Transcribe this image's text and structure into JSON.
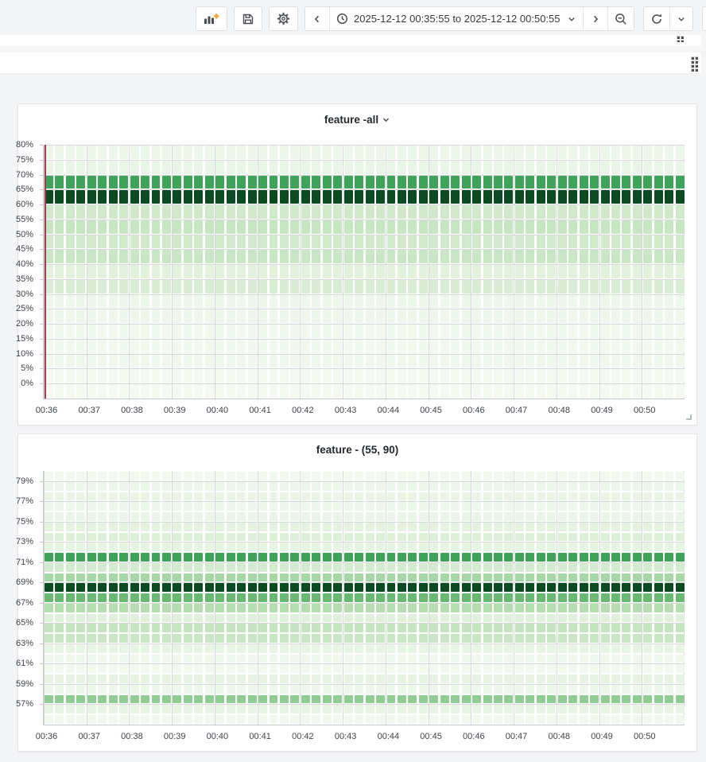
{
  "toolbar": {
    "time_range": "2025-12-12 00:35:55 to 2025-12-12 00:50:55",
    "buttons": [
      "add-panel",
      "save-dashboard",
      "dashboard-settings",
      "time-range-back",
      "time-range-picker",
      "time-range-forward",
      "zoom-out-time-range",
      "refresh-dashboard",
      "auto-refresh-interval",
      "cycle-view-mode"
    ]
  },
  "empty_rows": [
    {
      "name": "collapsed-row-1",
      "drag_handle": "partial"
    },
    {
      "name": "collapsed-row-2",
      "drag_handle": "full"
    }
  ],
  "panels": [
    {
      "title": "feature -all",
      "has_menu_caret": true
    },
    {
      "title": "feature - (55, 90)",
      "has_menu_caret": false
    }
  ],
  "chart_data": [
    {
      "type": "heatmap",
      "title": "feature -all",
      "x_range": [
        "00:35:55",
        "00:50:55"
      ],
      "x_ticks": [
        "00:36",
        "00:37",
        "00:38",
        "00:39",
        "00:40",
        "00:41",
        "00:42",
        "00:43",
        "00:44",
        "00:45",
        "00:46",
        "00:47",
        "00:48",
        "00:49",
        "00:50"
      ],
      "columns": 60,
      "column_interval_seconds": 15,
      "grid": true,
      "legend": false,
      "y_axis": {
        "unit": "percent",
        "min": -5,
        "max": 80,
        "tick_values": [
          80,
          75,
          70,
          65,
          60,
          55,
          50,
          45,
          40,
          35,
          30,
          25,
          20,
          15,
          10,
          5,
          0
        ],
        "tick_labels": [
          "80%",
          "75%",
          "70%",
          "65%",
          "60%",
          "55%",
          "50%",
          "45%",
          "40%",
          "35%",
          "30%",
          "25%",
          "20%",
          "15%",
          "10%",
          "5%",
          "0%"
        ]
      },
      "rows": [
        {
          "from": 75,
          "to": 80,
          "color": "#ecf6e9",
          "density": 0.04
        },
        {
          "from": 70,
          "to": 75,
          "color": "#e9f5e6",
          "density": 0.05
        },
        {
          "from": 65,
          "to": 70,
          "color": "#3fa35a",
          "density": 0.75
        },
        {
          "from": 60,
          "to": 65,
          "color": "#0c4a22",
          "density": 1.0
        },
        {
          "from": 55,
          "to": 60,
          "color": "#cfe9ca",
          "density": 0.22
        },
        {
          "from": 50,
          "to": 55,
          "color": "#c6e5c1",
          "density": 0.26
        },
        {
          "from": 45,
          "to": 50,
          "color": "#d1eacc",
          "density": 0.2
        },
        {
          "from": 40,
          "to": 45,
          "color": "#cae7c5",
          "density": 0.24
        },
        {
          "from": 35,
          "to": 40,
          "color": "#e2f2dd",
          "density": 0.12
        },
        {
          "from": 30,
          "to": 35,
          "color": "#d8edd3",
          "density": 0.18
        },
        {
          "from": 25,
          "to": 30,
          "color": "#eef7eb",
          "density": 0.06
        },
        {
          "from": 20,
          "to": 25,
          "color": "#eff7ec",
          "density": 0.05
        },
        {
          "from": 15,
          "to": 20,
          "color": "#f1f8ee",
          "density": 0.04
        },
        {
          "from": 10,
          "to": 15,
          "color": "#f1f9ef",
          "density": 0.04
        },
        {
          "from": 5,
          "to": 10,
          "color": "#f0f8ed",
          "density": 0.05
        },
        {
          "from": 0,
          "to": 5,
          "color": "#f3f9f0",
          "density": 0.03
        },
        {
          "from": -5,
          "to": 0,
          "color": "#f4faf1",
          "density": 0.02
        }
      ],
      "annotation_line": {
        "time": "00:35:55",
        "color": "#a23b52"
      },
      "note": "cell intensity is uniform across all 60 time columns"
    },
    {
      "type": "heatmap",
      "title": "feature - (55, 90)",
      "x_range": [
        "00:35:55",
        "00:50:55"
      ],
      "x_ticks": [
        "00:36",
        "00:37",
        "00:38",
        "00:39",
        "00:40",
        "00:41",
        "00:42",
        "00:43",
        "00:44",
        "00:45",
        "00:46",
        "00:47",
        "00:48",
        "00:49",
        "00:50"
      ],
      "columns": 60,
      "column_interval_seconds": 15,
      "grid": true,
      "legend": false,
      "y_axis": {
        "unit": "percent",
        "min": 55,
        "max": 80,
        "tick_values": [
          79,
          77,
          75,
          73,
          71,
          69,
          67,
          65,
          63,
          61,
          59,
          57
        ],
        "tick_labels": [
          "79%",
          "77%",
          "75%",
          "73%",
          "71%",
          "69%",
          "67%",
          "65%",
          "63%",
          "61%",
          "59%",
          "57%"
        ]
      },
      "rows": [
        {
          "from": 79,
          "to": 80,
          "color": "#f1f8ee",
          "density": 0.04
        },
        {
          "from": 78,
          "to": 79,
          "color": "#edf6ea",
          "density": 0.06
        },
        {
          "from": 77,
          "to": 78,
          "color": "#eaf5e7",
          "density": 0.08
        },
        {
          "from": 76,
          "to": 77,
          "color": "#eef7eb",
          "density": 0.06
        },
        {
          "from": 75,
          "to": 76,
          "color": "#e9f5e6",
          "density": 0.08
        },
        {
          "from": 74,
          "to": 75,
          "color": "#e4f3e0",
          "density": 0.1
        },
        {
          "from": 73,
          "to": 74,
          "color": "#dcefd7",
          "density": 0.14
        },
        {
          "from": 72,
          "to": 73,
          "color": "#e6f4e2",
          "density": 0.09
        },
        {
          "from": 71,
          "to": 72,
          "color": "#3ea258",
          "density": 0.78
        },
        {
          "from": 70,
          "to": 71,
          "color": "#d3ebce",
          "density": 0.16
        },
        {
          "from": 69,
          "to": 70,
          "color": "#a6d7a4",
          "density": 0.35
        },
        {
          "from": 68,
          "to": 69,
          "color": "#0c4a22",
          "density": 1.0
        },
        {
          "from": 67,
          "to": 68,
          "color": "#68b972",
          "density": 0.55
        },
        {
          "from": 66,
          "to": 67,
          "color": "#b4ddb0",
          "density": 0.28
        },
        {
          "from": 65,
          "to": 66,
          "color": "#e0f1db",
          "density": 0.11
        },
        {
          "from": 64,
          "to": 65,
          "color": "#c5e5c0",
          "density": 0.24
        },
        {
          "from": 63,
          "to": 64,
          "color": "#c9e7c4",
          "density": 0.22
        },
        {
          "from": 62,
          "to": 63,
          "color": "#e8f4e4",
          "density": 0.09
        },
        {
          "from": 61,
          "to": 62,
          "color": "#f0f8ed",
          "density": 0.05
        },
        {
          "from": 60,
          "to": 61,
          "color": "#f1f8ee",
          "density": 0.04
        },
        {
          "from": 59,
          "to": 60,
          "color": "#e6f3e2",
          "density": 0.1
        },
        {
          "from": 58,
          "to": 59,
          "color": "#eef7eb",
          "density": 0.06
        },
        {
          "from": 57,
          "to": 58,
          "color": "#8fcd92",
          "density": 0.42
        },
        {
          "from": 56,
          "to": 57,
          "color": "#e8f4e4",
          "density": 0.09
        },
        {
          "from": 55,
          "to": 56,
          "color": "#f1f8ee",
          "density": 0.04
        }
      ],
      "note": "cell intensity is uniform across all 60 time columns"
    }
  ]
}
